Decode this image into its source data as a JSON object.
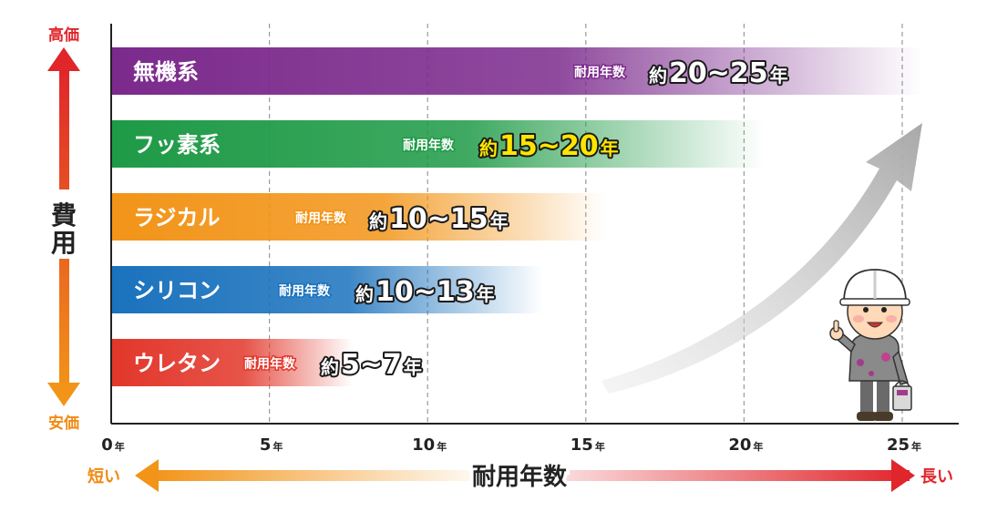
{
  "chart_data": {
    "type": "bar",
    "orientation": "horizontal",
    "xlabel": "耐用年数",
    "ylabel": "費用",
    "x_unit": "年",
    "x_ticks": [
      0,
      5,
      10,
      15,
      20,
      25
    ],
    "xlim": [
      0,
      25
    ],
    "grid": "vertical-dashed",
    "life_prefix": "耐用年数",
    "approx_prefix": "約",
    "range_sep": "~",
    "cost_axis": {
      "high": "高価",
      "low": "安価"
    },
    "duration_axis": {
      "short": "短い",
      "long": "長い"
    },
    "categories": [
      "無機系",
      "フッ素系",
      "ラジカル",
      "シリコン",
      "ウレタン"
    ],
    "colors": [
      "#7b2a8c",
      "#1e9a46",
      "#f29418",
      "#1a72bd",
      "#e2362a"
    ],
    "life_min": [
      20,
      15,
      10,
      10,
      5
    ],
    "life_max": [
      25,
      20,
      15,
      13,
      7
    ]
  },
  "icons": [
    "trend-up-arrow-icon",
    "worker-mascot-icon"
  ]
}
